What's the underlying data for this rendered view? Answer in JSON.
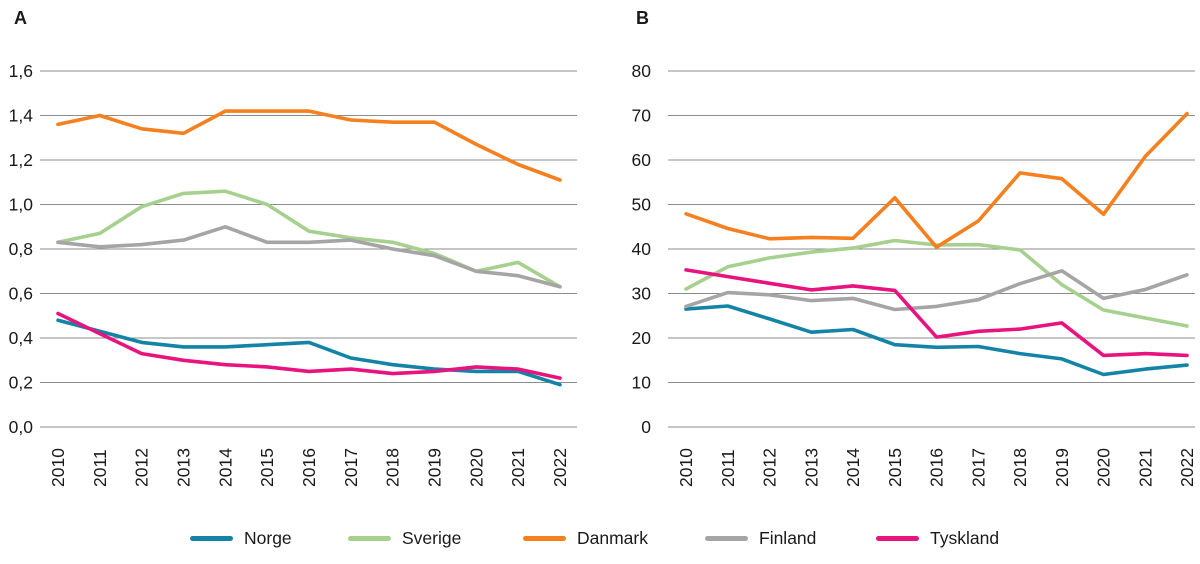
{
  "chart_data": [
    {
      "type": "line",
      "title": "A",
      "categories": [
        "2010",
        "2011",
        "2012",
        "2013",
        "2014",
        "2015",
        "2016",
        "2017",
        "2018",
        "2019",
        "2020",
        "2021",
        "2022"
      ],
      "ylim": [
        0,
        1.6
      ],
      "ytick_labels": [
        "1,6",
        "1,4",
        "1,2",
        "1,0",
        "0,8",
        "0,6",
        "0,4",
        "0,2",
        "0,0"
      ],
      "grid": true,
      "xlabel": "",
      "ylabel": "",
      "series": [
        {
          "name": "Norge",
          "color": "#1484a6",
          "values": [
            0.48,
            0.43,
            0.38,
            0.36,
            0.36,
            0.37,
            0.38,
            0.31,
            0.28,
            0.26,
            0.25,
            0.25,
            0.19
          ]
        },
        {
          "name": "Sverige",
          "color": "#a6d08e",
          "values": [
            0.83,
            0.87,
            0.99,
            1.05,
            1.06,
            1.0,
            0.88,
            0.85,
            0.83,
            0.78,
            0.7,
            0.74,
            0.63
          ]
        },
        {
          "name": "Danmark",
          "color": "#f5801f",
          "values": [
            1.36,
            1.4,
            1.34,
            1.32,
            1.42,
            1.42,
            1.42,
            1.38,
            1.37,
            1.37,
            1.27,
            1.18,
            1.11
          ]
        },
        {
          "name": "Finland",
          "color": "#a5a5a5",
          "values": [
            0.83,
            0.81,
            0.82,
            0.84,
            0.9,
            0.83,
            0.83,
            0.84,
            0.8,
            0.77,
            0.7,
            0.68,
            0.63
          ]
        },
        {
          "name": "Tyskland",
          "color": "#e8137f",
          "values": [
            0.51,
            0.42,
            0.33,
            0.3,
            0.28,
            0.27,
            0.25,
            0.26,
            0.24,
            0.25,
            0.27,
            0.26,
            0.22
          ]
        }
      ]
    },
    {
      "type": "line",
      "title": "B",
      "categories": [
        "2010",
        "2011",
        "2012",
        "2013",
        "2014",
        "2015",
        "2016",
        "2017",
        "2018",
        "2019",
        "2020",
        "2021",
        "2022"
      ],
      "ylim": [
        0,
        80
      ],
      "ytick_labels": [
        "80",
        "70",
        "60",
        "50",
        "40",
        "30",
        "20",
        "10",
        "0"
      ],
      "grid": true,
      "xlabel": "",
      "ylabel": "",
      "series": [
        {
          "name": "Norge",
          "color": "#1484a6",
          "values": [
            26.5,
            27.2,
            24.3,
            21.3,
            21.9,
            18.5,
            17.9,
            18.1,
            16.5,
            15.3,
            11.8,
            13.0,
            13.9
          ]
        },
        {
          "name": "Sverige",
          "color": "#a6d08e",
          "values": [
            31.0,
            36.0,
            38.0,
            39.3,
            40.2,
            41.9,
            40.9,
            41.0,
            39.8,
            32.0,
            26.3,
            24.5,
            22.7
          ]
        },
        {
          "name": "Danmark",
          "color": "#f5801f",
          "values": [
            47.9,
            44.6,
            42.3,
            42.6,
            42.4,
            51.5,
            40.4,
            46.3,
            57.1,
            55.8,
            47.8,
            60.8,
            70.4
          ]
        },
        {
          "name": "Finland",
          "color": "#a5a5a5",
          "values": [
            27.1,
            30.2,
            29.7,
            28.4,
            28.9,
            26.4,
            27.1,
            28.6,
            32.2,
            35.1,
            28.9,
            30.9,
            34.2
          ]
        },
        {
          "name": "Tyskland",
          "color": "#e8137f",
          "values": [
            35.3,
            33.8,
            32.3,
            30.8,
            31.7,
            30.7,
            20.2,
            21.5,
            22.0,
            23.4,
            16.1,
            16.5,
            16.1
          ]
        }
      ]
    }
  ],
  "legend": {
    "items": [
      {
        "label": "Norge",
        "color": "#1484a6"
      },
      {
        "label": "Sverige",
        "color": "#a6d08e"
      },
      {
        "label": "Danmark",
        "color": "#f5801f"
      },
      {
        "label": "Finland",
        "color": "#a5a5a5"
      },
      {
        "label": "Tyskland",
        "color": "#e8137f"
      }
    ]
  },
  "style": {
    "gridline_color": "#8c8c8c",
    "text_color": "#1a1a1a"
  }
}
